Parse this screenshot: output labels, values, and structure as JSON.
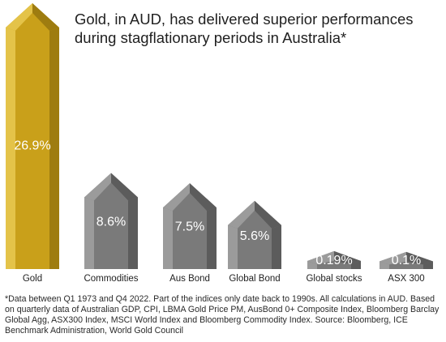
{
  "chart_data": {
    "type": "bar",
    "title": "Gold, in AUD, has delivered superior performances during stagflationary periods in Australia*",
    "categories": [
      "Gold",
      "Commodities",
      "Aus Bond",
      "Global Bond",
      "Global stocks",
      "ASX 300"
    ],
    "values": [
      26.9,
      8.6,
      7.5,
      5.6,
      0.19,
      0.1
    ],
    "value_labels": [
      "26.9%",
      "8.6%",
      "7.5%",
      "5.6%",
      "0.19%",
      "0.1%"
    ],
    "unit": "%",
    "xlabel": "",
    "ylabel": "",
    "grid": false,
    "colors": {
      "highlight_face": "#c9a01a",
      "highlight_light": "#e4c349",
      "highlight_dark": "#9e7c10",
      "default_face": "#7a7a7a",
      "default_light": "#9b9b9b",
      "default_dark": "#5c5c5c",
      "label_text": "#ffffff",
      "category_text": "#1f1f1f"
    }
  },
  "footnote": "*Data between Q1 1973 and Q4 2022. Part of the indices only date back to 1990s. All calculations in AUD. Based on quarterly data of Australian GDP, CPI, LBMA Gold Price PM, AusBond 0+ Composite Index, Bloomberg Barclay Global Agg, ASX300 Index, MSCI World Index and Bloomberg Commodity Index.  Source: Bloomberg, ICE Benchmark Administration, World Gold Council"
}
